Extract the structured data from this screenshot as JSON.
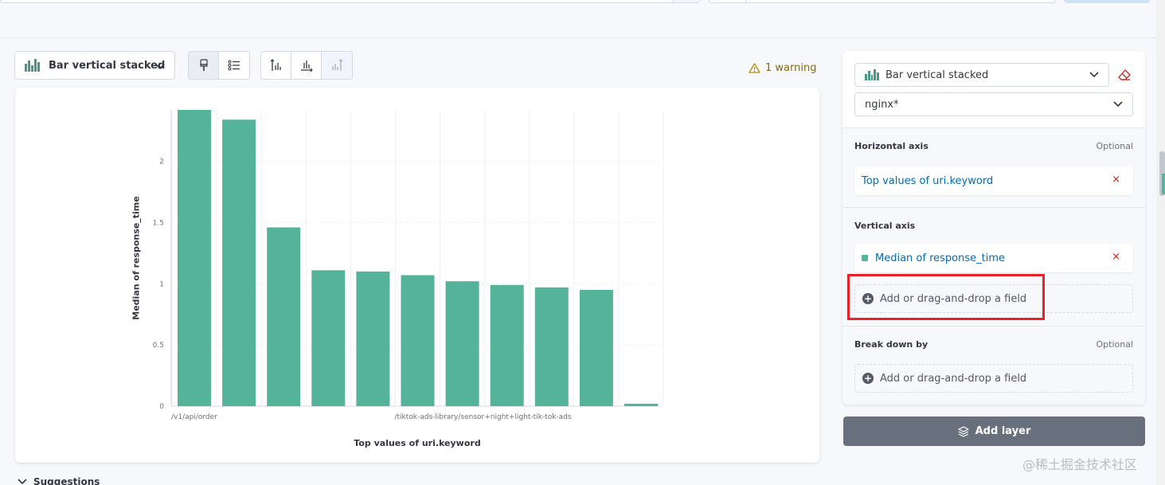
{
  "toolbar": {
    "chart_type_label": "Bar vertical stacked",
    "warning_text": "1 warning"
  },
  "icons": {
    "chart_type": "bar-stacked-icon",
    "paint": "paintbrush-icon",
    "legend": "legend-list-icon",
    "left_axis": "left-axis-icon",
    "bottom_axis": "bottom-axis-icon",
    "right_axis": "right-axis-icon",
    "warning": "warning-triangle-icon",
    "eraser": "eraser-icon",
    "plus": "plus-circle-icon",
    "layers": "layers-icon",
    "chevron": "chevron-down-icon"
  },
  "chart_data": {
    "type": "bar",
    "stacked": true,
    "xlabel": "Top values of uri.keyword",
    "ylabel": "Median of response_time",
    "categories": [
      "/v1/api/order",
      "",
      "",
      "",
      "",
      "/tiktok-ads-library/sensor+night+light-tik-tok-ads",
      "",
      "",
      "",
      "",
      ""
    ],
    "values": [
      2.42,
      2.34,
      1.46,
      1.11,
      1.1,
      1.07,
      1.02,
      0.99,
      0.97,
      0.95,
      0.02
    ],
    "yticks": [
      0,
      0.5,
      1,
      1.5,
      2
    ],
    "ylim": [
      0,
      2.42
    ],
    "grid": true,
    "bar_color": "#54b399"
  },
  "config": {
    "layer_type_label": "Bar vertical stacked",
    "index_pattern": "nginx*",
    "horizontal_axis": {
      "title": "Horizontal axis",
      "optional": "Optional",
      "field_label": "Top values of uri.keyword",
      "remove": "×"
    },
    "vertical_axis": {
      "title": "Vertical axis",
      "field_label": "Median of response_time",
      "remove": "×",
      "add_label": "Add or drag-and-drop a field"
    },
    "break_down": {
      "title": "Break down by",
      "optional": "Optional",
      "add_label": "Add or drag-and-drop a field"
    },
    "add_layer_label": "Add layer"
  },
  "suggestions_label": "Suggestions",
  "watermark": "@稀土掘金技术社区",
  "colors": {
    "accent_green": "#54b399",
    "link_blue": "#006bb8",
    "danger_red": "#bd271e",
    "highlight_red": "#e8212b",
    "warning_text": "#8a6a0a"
  }
}
